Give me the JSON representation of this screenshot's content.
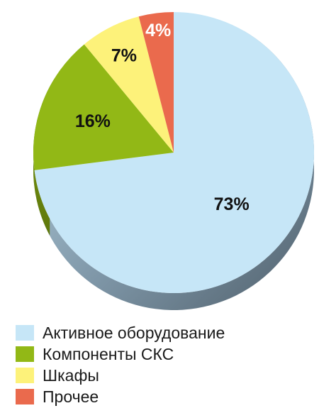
{
  "chart_data": {
    "type": "pie",
    "title": "",
    "categories": [
      "Активное оборудование",
      "Компоненты СКС",
      "Шкафы",
      "Прочее"
    ],
    "values": [
      73,
      16,
      7,
      4
    ],
    "data_labels": [
      "73%",
      "16%",
      "7%",
      "4%"
    ],
    "colors": [
      "#c6e6f7",
      "#92b816",
      "#fdf27a",
      "#ea6a4d"
    ],
    "label_colors": [
      "#111111",
      "#111111",
      "#111111",
      "#ffffff"
    ],
    "legend_position": "bottom-left",
    "style": "3d-tilted"
  },
  "legend": {
    "items": [
      {
        "label": "Активное оборудование",
        "color": "#c6e6f7"
      },
      {
        "label": "Компоненты СКС",
        "color": "#92b816"
      },
      {
        "label": "Шкафы",
        "color": "#fdf27a"
      },
      {
        "label": "Прочее",
        "color": "#ea6a4d"
      }
    ]
  }
}
